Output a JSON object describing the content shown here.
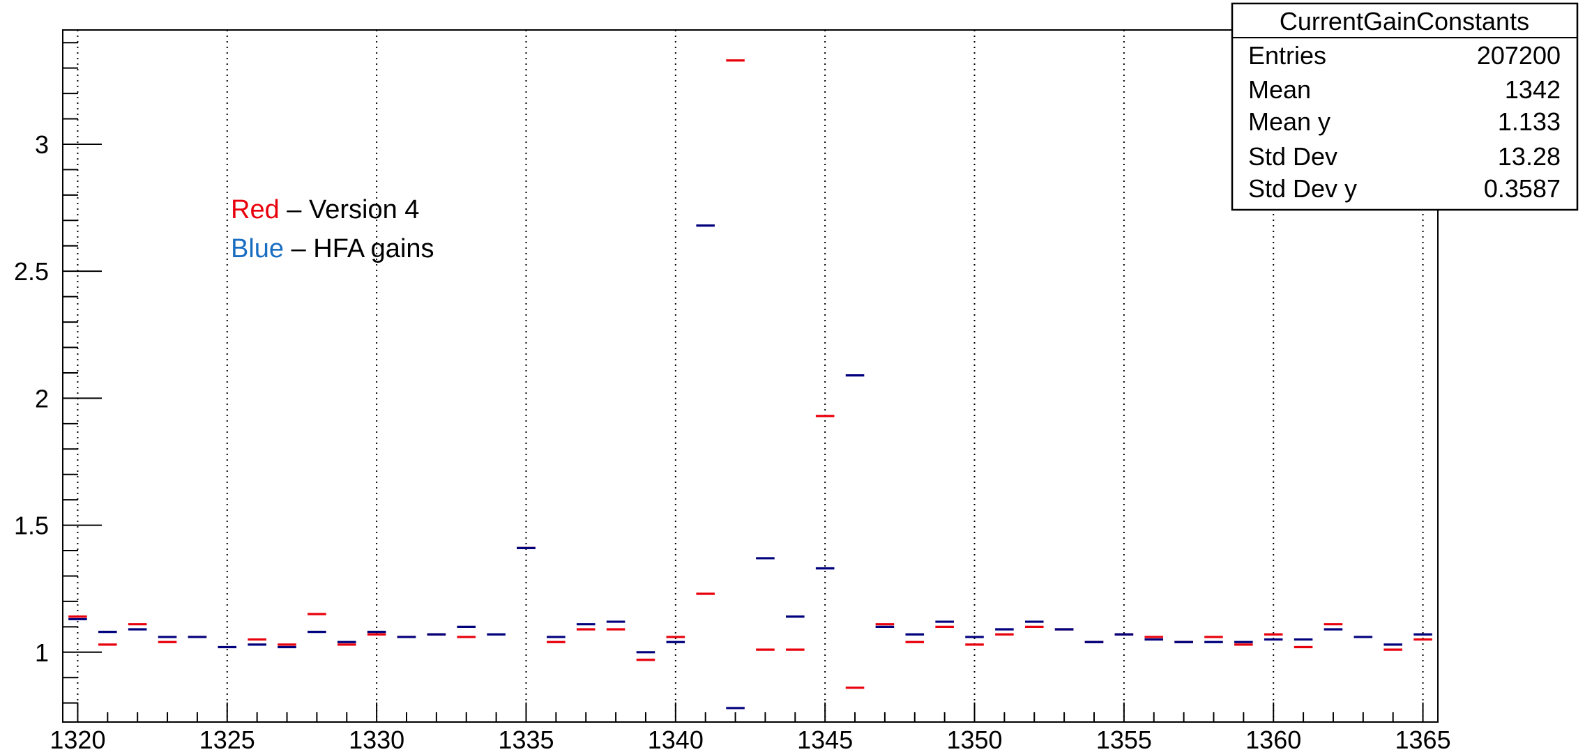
{
  "chart_data": {
    "type": "scatter",
    "title": "",
    "xlabel": "",
    "ylabel": "",
    "xlim": [
      1319.5,
      1365.5
    ],
    "ylim": [
      0.725,
      3.45
    ],
    "grid": "vertical-dotted",
    "x_ticks": [
      1320,
      1325,
      1330,
      1335,
      1340,
      1345,
      1350,
      1355,
      1360,
      1365
    ],
    "x_tick_labels": [
      "1320",
      "1325",
      "1330",
      "1335",
      "1340",
      "1345",
      "1350",
      "1355",
      "1360",
      "1365"
    ],
    "y_ticks": [
      1,
      1.5,
      2,
      2.5,
      3
    ],
    "y_tick_labels": [
      "1",
      "1.5",
      "2",
      "2.5",
      "3"
    ],
    "x": [
      1320,
      1321,
      1322,
      1323,
      1324,
      1325,
      1326,
      1327,
      1328,
      1329,
      1330,
      1331,
      1332,
      1333,
      1334,
      1335,
      1336,
      1337,
      1338,
      1339,
      1340,
      1341,
      1342,
      1343,
      1344,
      1345,
      1346,
      1347,
      1348,
      1349,
      1350,
      1351,
      1352,
      1353,
      1354,
      1355,
      1356,
      1357,
      1358,
      1359,
      1360,
      1361,
      1362,
      1363,
      1364,
      1365
    ],
    "series": [
      {
        "color": "#e8000b",
        "values": [
          1.14,
          1.03,
          1.11,
          1.04,
          1.06,
          null,
          1.05,
          1.03,
          1.15,
          1.03,
          1.07,
          1.06,
          1.07,
          1.06,
          null,
          1.41,
          1.04,
          1.09,
          1.09,
          0.97,
          1.06,
          1.23,
          3.33,
          1.01,
          1.01,
          1.93,
          0.86,
          1.11,
          1.04,
          1.1,
          1.03,
          1.07,
          1.1,
          1.09,
          1.04,
          1.07,
          1.06,
          1.04,
          1.06,
          1.03,
          1.07,
          1.02,
          1.11,
          null,
          1.01,
          1.05
        ]
      },
      {
        "color": "#00007d",
        "values": [
          1.13,
          1.08,
          1.09,
          1.06,
          1.06,
          1.02,
          1.03,
          1.02,
          1.08,
          1.04,
          1.08,
          1.06,
          1.07,
          1.1,
          1.07,
          1.41,
          1.06,
          1.11,
          1.12,
          1.0,
          1.04,
          2.68,
          0.78,
          1.37,
          1.14,
          1.33,
          2.09,
          1.1,
          1.07,
          1.12,
          1.06,
          1.09,
          1.12,
          1.09,
          1.04,
          1.07,
          1.05,
          1.04,
          1.04,
          1.04,
          1.05,
          1.05,
          1.09,
          1.06,
          1.03,
          1.07
        ]
      }
    ],
    "annotations": [
      {
        "color_word": "Red",
        "color": "#e8000b",
        "text": " – Version 4"
      },
      {
        "color_word": "Blue",
        "color": "#1a6ec2",
        "text": " – HFA gains"
      }
    ],
    "stats_box": {
      "title": "CurrentGainConstants",
      "placement": "top-right",
      "rows": [
        {
          "label": "Entries",
          "value": "207200"
        },
        {
          "label": "Mean",
          "value": "1342"
        },
        {
          "label": "Mean y",
          "value": "1.133"
        },
        {
          "label": "Std Dev",
          "value": "13.28"
        },
        {
          "label": "Std Dev y",
          "value": "0.3587"
        }
      ]
    }
  }
}
